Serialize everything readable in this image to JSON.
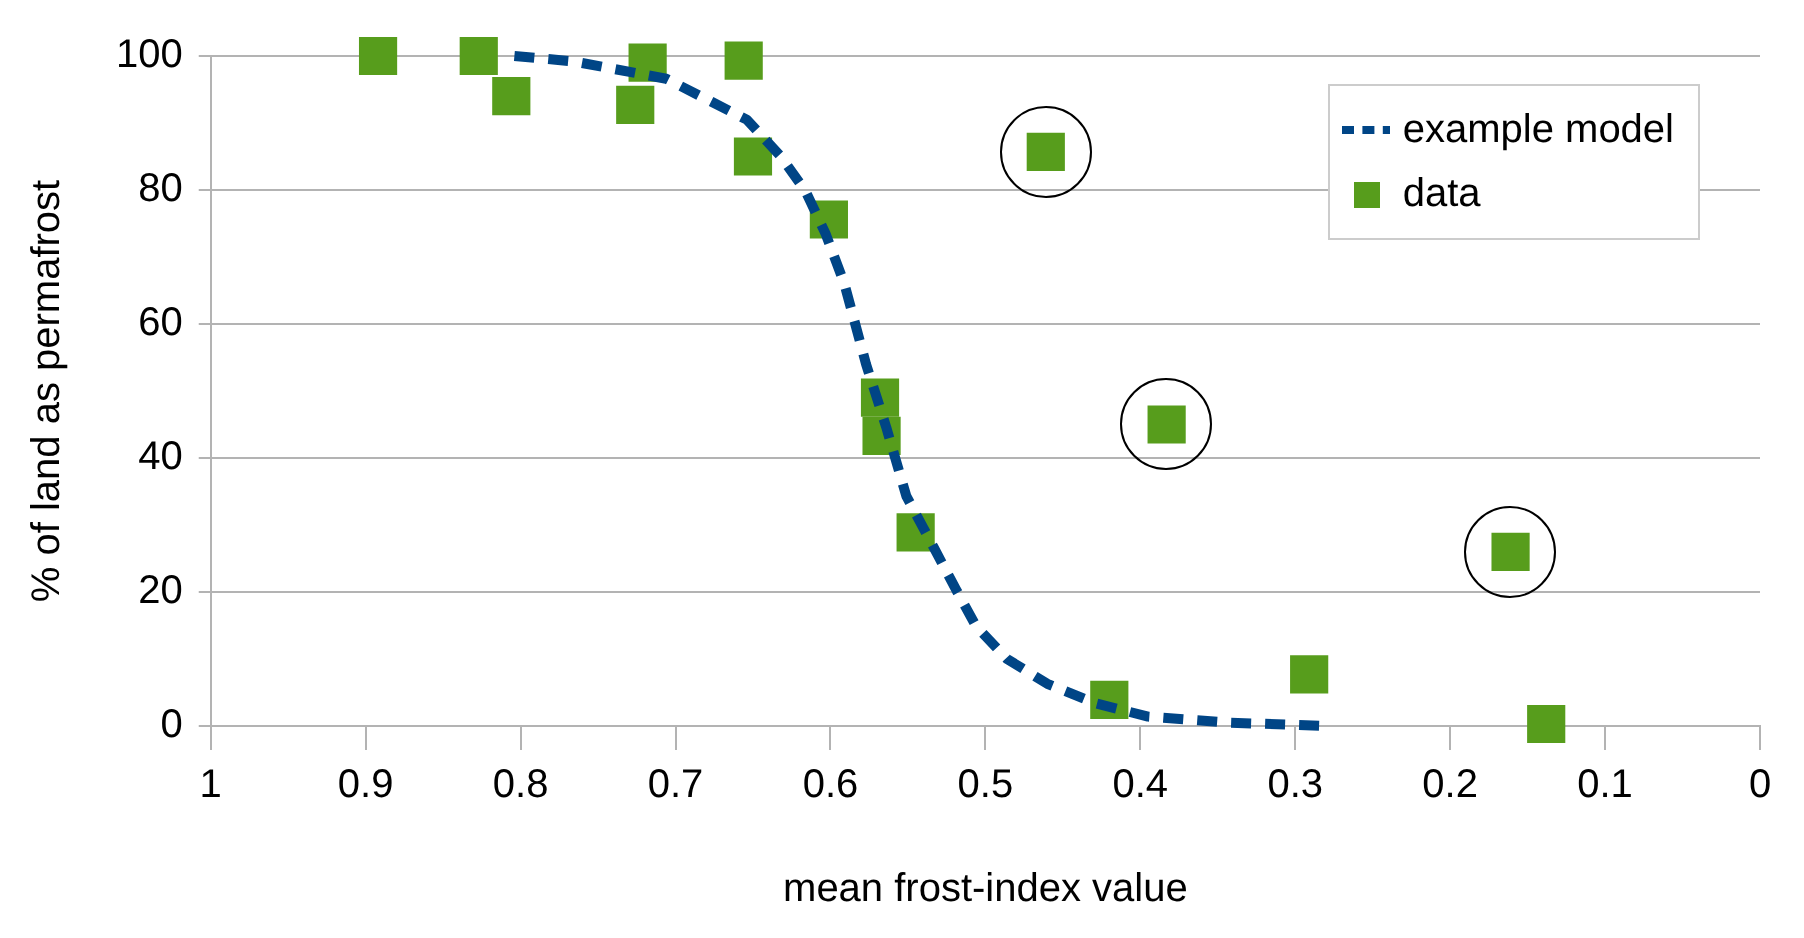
{
  "chart_data": {
    "type": "scatter",
    "xlabel": "mean frost-index value",
    "ylabel": "% of land as permafrost",
    "xlim": [
      1,
      0
    ],
    "xticks": [
      1,
      0.9,
      0.8,
      0.7,
      0.6,
      0.5,
      0.4,
      0.3,
      0.2,
      0.1,
      0
    ],
    "ylim": [
      0,
      100
    ],
    "yticks": [
      0,
      20,
      40,
      60,
      80,
      100
    ],
    "grid": "y",
    "legend": "top right",
    "series": [
      {
        "name": "example model",
        "type": "line",
        "color": "#004586",
        "line_style": "dashed",
        "marker": "none",
        "x": [
          0.804,
          0.766,
          0.706,
          0.654,
          0.632,
          0.616,
          0.603,
          0.591,
          0.577,
          0.564,
          0.551,
          0.533,
          0.519,
          0.506,
          0.486,
          0.46,
          0.429,
          0.395,
          0.343,
          0.278
        ],
        "values": [
          100,
          99.2,
          96.6,
          90.5,
          85,
          79.8,
          73.4,
          66,
          54,
          44.6,
          34.3,
          26.5,
          20.4,
          14.9,
          10,
          6.3,
          3.4,
          1.4,
          0.5,
          0
        ]
      },
      {
        "name": "data",
        "type": "scatter",
        "color": "#579d1c",
        "marker": "square",
        "x": [
          0.892,
          0.827,
          0.806,
          0.726,
          0.718,
          0.656,
          0.65,
          0.601,
          0.568,
          0.567,
          0.545,
          0.461,
          0.42,
          0.383,
          0.291,
          0.161,
          0.138
        ],
        "values": [
          100,
          100,
          94,
          92.7,
          99,
          99.3,
          85,
          75.6,
          49,
          43.3,
          28.9,
          85.7,
          3.9,
          45,
          7.7,
          26,
          0.3
        ]
      }
    ]
  }
}
